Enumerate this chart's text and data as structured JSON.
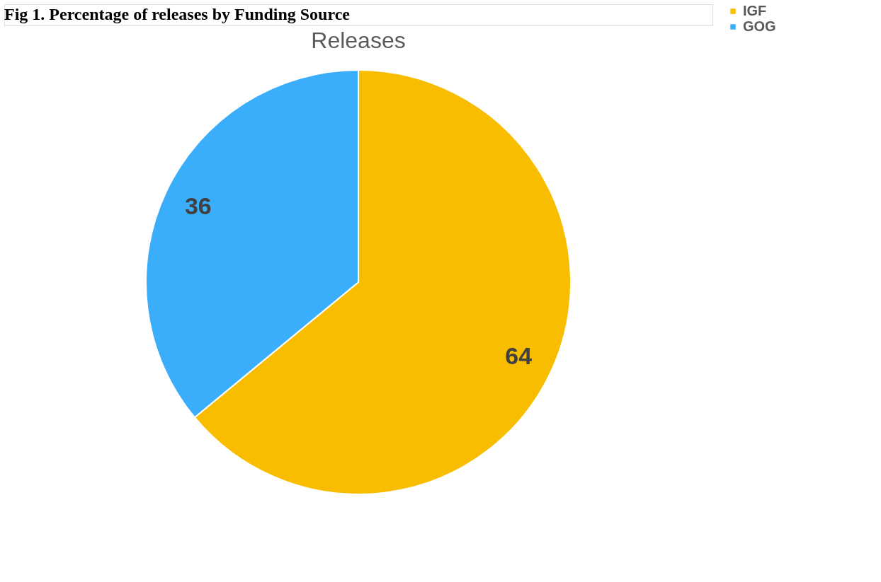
{
  "chart_data": {
    "type": "pie",
    "title": "Releases",
    "annotations": [
      "Fig 1. Percentage of releases by Funding Source"
    ],
    "categories": [
      "IGF",
      "GOG"
    ],
    "values": [
      64,
      36
    ],
    "colors": [
      "#f9bd00",
      "#3aadfb"
    ],
    "data_labels": true,
    "legend": "right"
  }
}
